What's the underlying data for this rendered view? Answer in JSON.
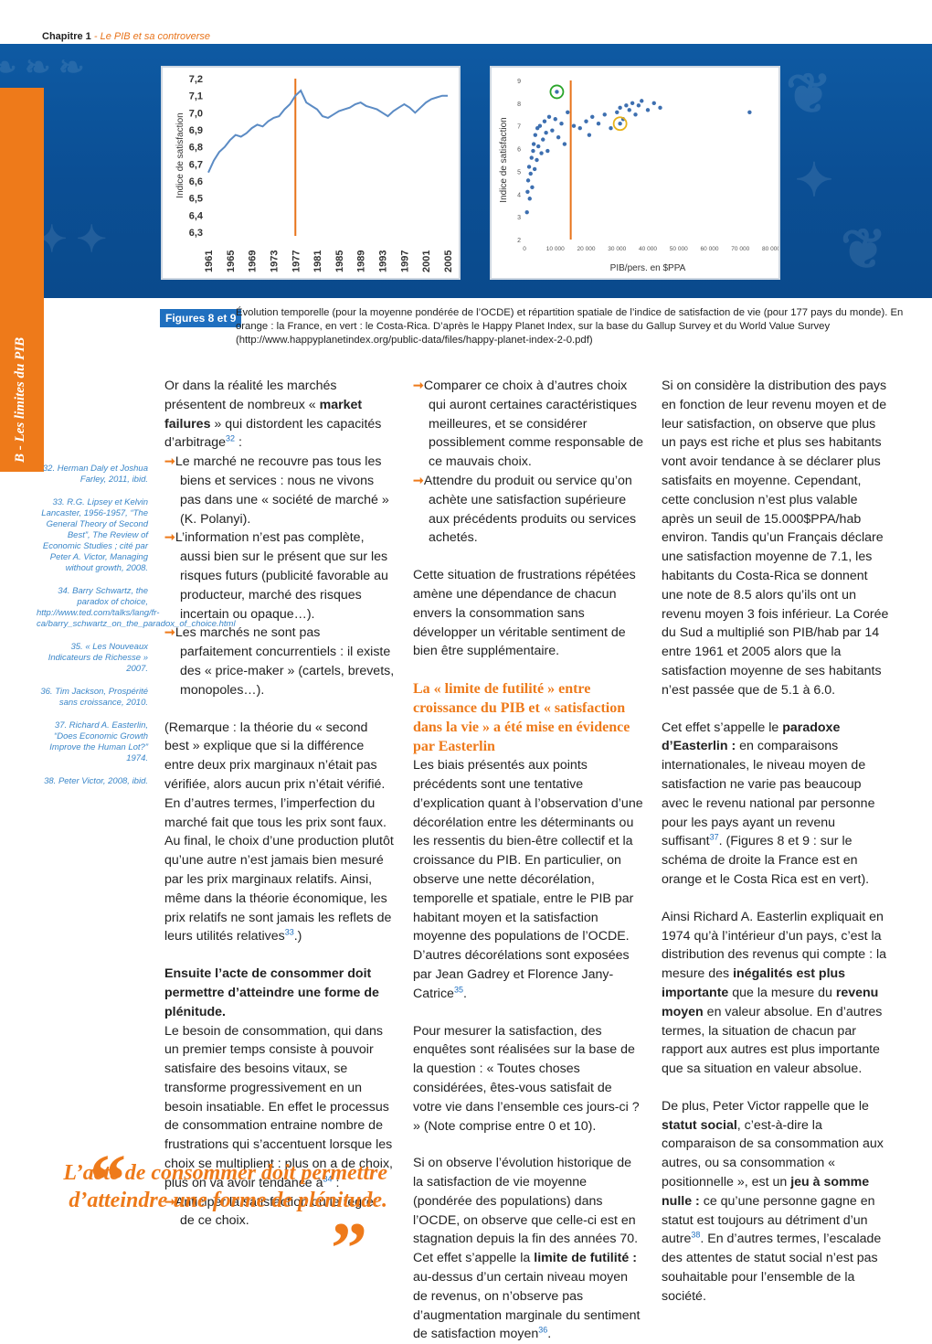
{
  "header": {
    "chapter": "Chapitre 1",
    "subtitle": "- Le PIB et sa controverse"
  },
  "sidebar": {
    "label": "B - Les limites du PIB"
  },
  "chart_data": [
    {
      "type": "line",
      "ylabel": "Indice de satisfaction",
      "ylim": [
        6.3,
        7.2
      ],
      "yticks": [
        "7,2",
        "7,1",
        "7,0",
        "6,9",
        "6,8",
        "6,7",
        "6,6",
        "6,5",
        "6,4",
        "6,3"
      ],
      "xticks": [
        "1961",
        "1965",
        "1969",
        "1973",
        "1977",
        "1981",
        "1985",
        "1989",
        "1993",
        "1997",
        "2001",
        "2005"
      ],
      "highlight_x": 1977,
      "highlight_color": "#e8731a",
      "line_color": "#5b8bc4",
      "x": [
        1961,
        1962,
        1963,
        1964,
        1965,
        1966,
        1967,
        1968,
        1969,
        1970,
        1971,
        1972,
        1973,
        1974,
        1975,
        1976,
        1977,
        1978,
        1979,
        1980,
        1981,
        1982,
        1983,
        1984,
        1985,
        1986,
        1987,
        1988,
        1989,
        1990,
        1991,
        1992,
        1993,
        1994,
        1995,
        1996,
        1997,
        1998,
        1999,
        2000,
        2001,
        2002,
        2003,
        2004,
        2005
      ],
      "y": [
        6.65,
        6.72,
        6.77,
        6.8,
        6.84,
        6.87,
        6.86,
        6.88,
        6.91,
        6.93,
        6.92,
        6.95,
        6.97,
        6.98,
        7.02,
        7.05,
        7.1,
        7.13,
        7.06,
        7.04,
        7.02,
        6.98,
        6.97,
        6.99,
        7.01,
        7.02,
        7.03,
        7.05,
        7.06,
        7.04,
        7.03,
        7.02,
        7.0,
        6.98,
        7.01,
        7.03,
        7.05,
        7.03,
        7.0,
        7.03,
        7.06,
        7.08,
        7.09,
        7.1,
        7.1
      ]
    },
    {
      "type": "scatter",
      "ylabel": "Indice de satisfaction",
      "xlabel": "PIB/pers. en $PPA",
      "ylim": [
        2,
        9
      ],
      "yticks": [
        "9",
        "8",
        "7",
        "6",
        "5",
        "4",
        "3",
        "2"
      ],
      "xlim": [
        0,
        80000
      ],
      "xticks": [
        "0",
        "10 000",
        "20 000",
        "30 000",
        "40 000",
        "50 000",
        "60 000",
        "70 000",
        "80 000"
      ],
      "highlight_x": 15000,
      "highlight_color": "#e8731a",
      "point_color": "#3d6fb0",
      "points": [
        [
          800,
          3.2
        ],
        [
          1000,
          4.1
        ],
        [
          1200,
          4.6
        ],
        [
          1500,
          5.2
        ],
        [
          1700,
          3.8
        ],
        [
          2000,
          4.9
        ],
        [
          2300,
          5.6
        ],
        [
          2500,
          4.3
        ],
        [
          2800,
          5.9
        ],
        [
          3000,
          6.2
        ],
        [
          3300,
          5.1
        ],
        [
          3500,
          6.6
        ],
        [
          4000,
          5.5
        ],
        [
          4200,
          6.9
        ],
        [
          4500,
          6.1
        ],
        [
          5000,
          7.0
        ],
        [
          5500,
          5.8
        ],
        [
          6000,
          6.4
        ],
        [
          6500,
          7.2
        ],
        [
          7000,
          6.7
        ],
        [
          7500,
          5.9
        ],
        [
          8000,
          7.4
        ],
        [
          9000,
          6.8
        ],
        [
          10000,
          7.3
        ],
        [
          11000,
          6.5
        ],
        [
          12000,
          7.1
        ],
        [
          13000,
          6.2
        ],
        [
          14000,
          7.6
        ],
        [
          16000,
          7.0
        ],
        [
          18000,
          6.9
        ],
        [
          20000,
          7.2
        ],
        [
          21000,
          6.6
        ],
        [
          22000,
          7.4
        ],
        [
          24000,
          7.1
        ],
        [
          26000,
          7.5
        ],
        [
          28000,
          6.9
        ],
        [
          30000,
          7.6
        ],
        [
          31000,
          7.8
        ],
        [
          32000,
          7.3
        ],
        [
          33000,
          7.9
        ],
        [
          34000,
          7.7
        ],
        [
          35000,
          8.0
        ],
        [
          36000,
          7.5
        ],
        [
          37000,
          7.9
        ],
        [
          38000,
          8.1
        ],
        [
          40000,
          7.7
        ],
        [
          42000,
          8.0
        ],
        [
          44000,
          7.8
        ],
        [
          73000,
          7.6
        ]
      ],
      "highlight_points": [
        {
          "label": "Costa-Rica",
          "x": 10500,
          "y": 8.5,
          "color": "#2aa52a"
        },
        {
          "label": "France",
          "x": 31000,
          "y": 7.1,
          "color": "#e8b21a"
        }
      ]
    }
  ],
  "caption": {
    "tag": "Figures 8 et 9",
    "text": "Évolution temporelle (pour la moyenne pondérée de l’OCDE) et répartition spatiale de l’indice de satisfaction de vie (pour 177 pays du monde). En orange : la France, en vert : le Costa-Rica. D’après le Happy Planet Index, sur la base du Gallup Survey et du World Value Survey (http://www.happyplanetindex.org/public-data/files/happy-planet-index-2-0.pdf)"
  },
  "notes": [
    "32. Herman Daly et Joshua Farley, 2011, ibid.",
    "33. R.G. Lipsey et Kelvin Lancaster, 1956-1957, “The General Theory of Second Best”, The Review of Economic Studies ; cité par Peter A. Victor, Managing without growth, 2008.",
    "34. Barry Schwartz, the paradox of choice, http://www.ted.com/talks/lang/fr-ca/barry_schwartz_on_the_paradox_of_choice.html",
    "35. « Les Nouveaux Indicateurs de Richesse » 2007.",
    "36. Tim Jackson, Prospérité sans croissance, 2010.",
    "37. Richard A. Easterlin, “Does Economic Growth Improve the Human Lot?” 1974.",
    "38. Peter Victor, 2008, ibid."
  ],
  "col1": {
    "p1a": "Or dans la réalité les marchés présentent de nombreux « ",
    "p1b": "market failures",
    "p1c": " » qui distordent les capacités d’arbitrage",
    "n32": "32",
    "p1d": " :",
    "b1": "Le marché ne recouvre pas tous les biens et services : nous ne vivons pas dans une « société de marché » (K. Polanyi).",
    "b2": "L’information n’est pas complète, aussi bien sur le présent que sur les risques futurs (publicité favorable au producteur, marché des risques incertain ou opaque…).",
    "b3": "Les marchés ne sont pas parfaitement concurrentiels : il existe des « price-maker » (cartels, brevets, monopoles…).",
    "p2": "(Remarque : la théorie du « second best » explique que si la différence entre deux prix marginaux n’était pas vérifiée, alors aucun prix n’était vérifié. En d’autres termes, l’imperfection du marché fait que tous les prix sont faux. Au final, le choix d’une production plutôt qu’une autre n’est jamais bien mesuré par les prix marginaux relatifs. Ainsi, même dans la théorie économique, les prix relatifs ne sont jamais les reflets de leurs utilités relatives",
    "n33": "33",
    "p2end": ".)",
    "head": "Ensuite l’acte de consommer doit permettre d’atteindre une forme de plénitude.",
    "p3": "Le besoin de consommation, qui dans un premier temps consiste à pouvoir satisfaire des besoins vitaux, se transforme progressivement en un besoin insatiable. En effet le processus de consommation entraine nombre de frustrations qui s’accentuent lorsque les choix se multiplient : plus on a de choix, plus on va avoir tendance à",
    "n34": "34",
    "p3end": " :",
    "b4": "Anticiper la satisfaction ou le regret de ce choix."
  },
  "col2": {
    "b5": "Comparer ce choix à d’autres choix qui auront certaines caractéristiques meilleures, et se considérer possiblement comme responsable de ce mauvais choix.",
    "b6": "Attendre du produit ou service qu’on achète une satisfaction supérieure aux précédents produits ou services achetés.",
    "p4": "Cette situation de frustrations répétées amène une dépendance de chacun envers la consommation sans développer un véritable sentiment de bien être supplémentaire.",
    "head": "La « limite de futilité » entre croissance du PIB et « satisfaction dans la vie » a été mise en évidence par Easterlin",
    "p5": "Les biais présentés aux points précédents sont une tentative d’explication quant à l’observation d’une décorélation entre les déterminants ou les ressentis du bien-être collectif et la croissance du PIB. En particulier, on observe une nette décorélation, temporelle et spatiale, entre le PIB par habitant moyen et la satisfaction moyenne des populations de l’OCDE. D’autres décorélations sont exposées par Jean Gadrey et Florence Jany-Catrice",
    "n35": "35",
    "p5end": ".",
    "p6": "Pour mesurer la satisfaction, des enquêtes sont réalisées sur la base de la question : « Toutes choses considérées, êtes-vous satisfait de votre vie dans l’ensemble ces jours-ci ? » (Note comprise entre 0 et 10).",
    "p7a": "Si on observe l’évolution historique de la satisfaction de vie moyenne (pondérée des populations) dans l’OCDE, on observe que celle-ci est en stagnation depuis la fin des années 70. Cet effet s’appelle la ",
    "p7b": "limite de futilité :",
    "p7c": " au-dessus d’un certain niveau moyen de revenus, on n’observe pas d’augmentation marginale du sentiment de satisfaction moyen",
    "n36": "36",
    "p7end": "."
  },
  "col3": {
    "p8": "Si on considère la distribution des pays en fonction de leur revenu moyen et de leur satisfaction, on observe que plus un pays est riche et plus ses habitants vont avoir tendance à se déclarer plus satisfaits en moyenne. Cependant, cette conclusion n’est plus valable après un seuil de 15.000$PPA/hab environ. Tandis qu’un Français déclare une satisfaction moyenne de 7.1, les habitants du Costa-Rica se donnent une note de 8.5 alors qu’ils ont un revenu moyen 3 fois inférieur. La Corée du Sud a multiplié son PIB/hab par 14 entre 1961 et 2005 alors que la satisfaction moyenne de ses habitants n’est passée que de 5.1 à 6.0.",
    "p9a": "Cet effet s’appelle le ",
    "p9b": "paradoxe d’Easterlin :",
    "p9c": " en comparaisons internationales, le niveau moyen de satisfaction ne varie pas beaucoup avec le revenu national par personne pour les pays ayant un revenu suffisant",
    "n37": "37",
    "p9d": ". (Figures 8 et 9 : sur le schéma de droite la France est en orange et le Costa Rica est en vert).",
    "p10a": "Ainsi Richard A. Easterlin expliquait en 1974 qu’à l’intérieur d’un pays, c’est la distribution des revenus qui compte : la mesure des ",
    "p10b": "inégalités est plus importante",
    "p10c": " que la mesure du ",
    "p10d": "revenu moyen",
    "p10e": " en valeur absolue. En d’autres termes, la situation de chacun par rapport aux autres est plus importante que sa situation en valeur absolue.",
    "p11a": "De plus, Peter Victor rappelle que le ",
    "p11b": "statut social",
    "p11c": ", c’est-à-dire la comparaison de sa consommation aux autres, ou sa consommation « positionnelle », est un ",
    "p11d": "jeu à somme nulle :",
    "p11e": " ce qu’une personne gagne en statut est toujours au détriment d’un autre",
    "n38": "38",
    "p11f": ". En d’autres termes, l’escalade des attentes de statut social n’est pas souhaitable pour l’ensemble de la société."
  },
  "pullquote": "L’acte de consommer doit permettre d’atteindre une forme de plénitude.",
  "arrow_glyph": "➞"
}
